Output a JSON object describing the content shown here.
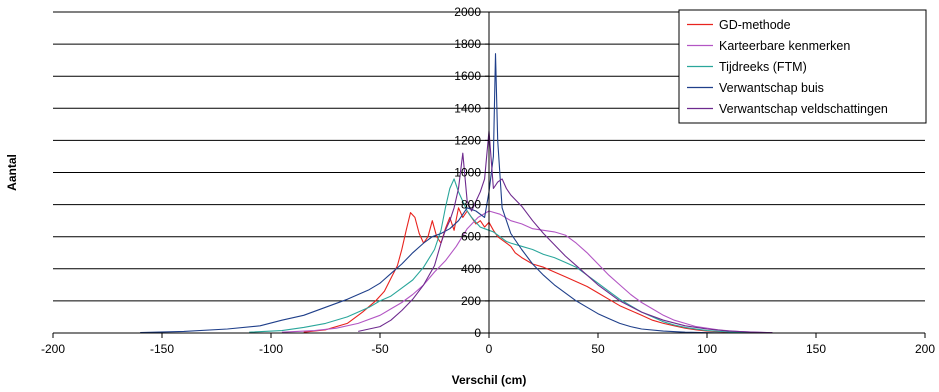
{
  "chart_data": {
    "type": "line",
    "title": "",
    "xlabel": "Verschil (cm)",
    "ylabel": "Aantal",
    "xlim": [
      -200,
      200
    ],
    "ylim": [
      0,
      2000
    ],
    "x_ticks": [
      -200,
      -150,
      -100,
      -50,
      0,
      50,
      100,
      150,
      200
    ],
    "y_ticks": [
      0,
      200,
      400,
      600,
      800,
      1000,
      1200,
      1400,
      1600,
      1800,
      2000
    ],
    "y_tick_labels": [
      "0",
      "200",
      "400",
      "600",
      "800",
      "1000",
      "1200",
      "1400",
      "1600",
      "1800",
      "2000"
    ],
    "x_tick_labels": [
      "-200",
      "-150",
      "-100",
      "-50",
      "0",
      "50",
      "100",
      "150",
      "200"
    ],
    "grid": "horizontal",
    "legend_position": "top-right",
    "series": [
      {
        "name": "GD-methode",
        "color": "#e8231e",
        "x": [
          -85,
          -75,
          -65,
          -58,
          -52,
          -48,
          -45,
          -42,
          -40,
          -38,
          -36,
          -34,
          -32,
          -30,
          -28,
          -26,
          -24,
          -22,
          -20,
          -18,
          -16,
          -14,
          -12,
          -10,
          -8,
          -6,
          -4,
          -2,
          0,
          2,
          4,
          6,
          8,
          10,
          12,
          15,
          20,
          25,
          30,
          35,
          40,
          45,
          50,
          55,
          60,
          65,
          70,
          75,
          80,
          85,
          90,
          95,
          100,
          110,
          120
        ],
        "y": [
          5,
          20,
          60,
          130,
          200,
          260,
          340,
          420,
          520,
          640,
          750,
          720,
          620,
          560,
          600,
          700,
          600,
          560,
          650,
          720,
          640,
          780,
          720,
          760,
          720,
          680,
          700,
          660,
          690,
          640,
          600,
          580,
          560,
          540,
          500,
          470,
          430,
          410,
          380,
          350,
          320,
          290,
          250,
          210,
          170,
          140,
          110,
          80,
          60,
          45,
          30,
          20,
          12,
          5,
          2
        ]
      },
      {
        "name": "Karteerbare kenmerken",
        "color": "#b356c4",
        "x": [
          -95,
          -80,
          -70,
          -60,
          -50,
          -45,
          -40,
          -35,
          -30,
          -25,
          -20,
          -15,
          -10,
          -5,
          0,
          5,
          10,
          15,
          20,
          25,
          30,
          35,
          40,
          45,
          50,
          55,
          60,
          65,
          70,
          75,
          80,
          85,
          90,
          95,
          100,
          105,
          110,
          115,
          120,
          125,
          130
        ],
        "y": [
          5,
          15,
          30,
          60,
          110,
          150,
          190,
          240,
          300,
          380,
          450,
          540,
          650,
          720,
          760,
          740,
          700,
          680,
          650,
          640,
          630,
          610,
          560,
          500,
          430,
          360,
          300,
          240,
          190,
          150,
          110,
          80,
          60,
          40,
          30,
          20,
          14,
          9,
          6,
          4,
          2
        ]
      },
      {
        "name": "Tijdreeks (FTM)",
        "color": "#2aa69b",
        "x": [
          -110,
          -95,
          -85,
          -75,
          -65,
          -55,
          -50,
          -45,
          -40,
          -35,
          -30,
          -25,
          -22,
          -20,
          -18,
          -16,
          -14,
          -12,
          -10,
          -8,
          -6,
          -4,
          -2,
          0,
          2,
          4,
          6,
          8,
          10,
          15,
          20,
          25,
          30,
          35,
          40,
          45,
          50,
          55,
          60,
          65,
          70,
          75,
          80,
          85,
          90,
          95,
          100,
          110,
          120
        ],
        "y": [
          5,
          15,
          35,
          60,
          100,
          160,
          200,
          230,
          280,
          330,
          410,
          520,
          640,
          780,
          900,
          960,
          880,
          820,
          760,
          720,
          690,
          660,
          650,
          640,
          630,
          610,
          590,
          570,
          560,
          540,
          520,
          490,
          470,
          440,
          410,
          360,
          310,
          260,
          210,
          170,
          130,
          100,
          70,
          50,
          35,
          24,
          15,
          6,
          2
        ]
      },
      {
        "name": "Verwantschap buis",
        "color": "#1f3f8a",
        "x": [
          -160,
          -140,
          -120,
          -105,
          -95,
          -85,
          -75,
          -65,
          -55,
          -50,
          -45,
          -40,
          -35,
          -30,
          -26,
          -22,
          -18,
          -14,
          -10,
          -6,
          -2,
          0,
          2,
          3,
          4,
          6,
          10,
          15,
          20,
          25,
          30,
          35,
          40,
          45,
          50,
          55,
          60,
          65,
          70,
          80,
          90,
          100,
          110
        ],
        "y": [
          3,
          10,
          25,
          45,
          80,
          110,
          160,
          210,
          270,
          310,
          370,
          430,
          500,
          560,
          600,
          620,
          650,
          700,
          780,
          760,
          720,
          880,
          1100,
          1740,
          1200,
          780,
          620,
          520,
          430,
          360,
          300,
          250,
          200,
          160,
          120,
          90,
          60,
          40,
          25,
          12,
          5,
          2,
          0
        ]
      },
      {
        "name": "Verwantschap veldschattingen",
        "color": "#6e2a8e",
        "x": [
          -60,
          -50,
          -45,
          -40,
          -35,
          -30,
          -25,
          -22,
          -20,
          -18,
          -16,
          -14,
          -12,
          -10,
          -8,
          -6,
          -4,
          -2,
          0,
          2,
          4,
          6,
          8,
          10,
          15,
          20,
          25,
          30,
          35,
          40,
          45,
          50,
          55,
          60,
          70,
          80,
          90,
          100,
          110,
          120,
          130
        ],
        "y": [
          10,
          40,
          80,
          140,
          210,
          300,
          420,
          560,
          640,
          700,
          780,
          900,
          1120,
          820,
          760,
          820,
          880,
          960,
          1260,
          900,
          940,
          960,
          900,
          860,
          790,
          700,
          620,
          550,
          480,
          420,
          360,
          300,
          250,
          200,
          130,
          80,
          45,
          25,
          12,
          6,
          2
        ]
      }
    ]
  }
}
